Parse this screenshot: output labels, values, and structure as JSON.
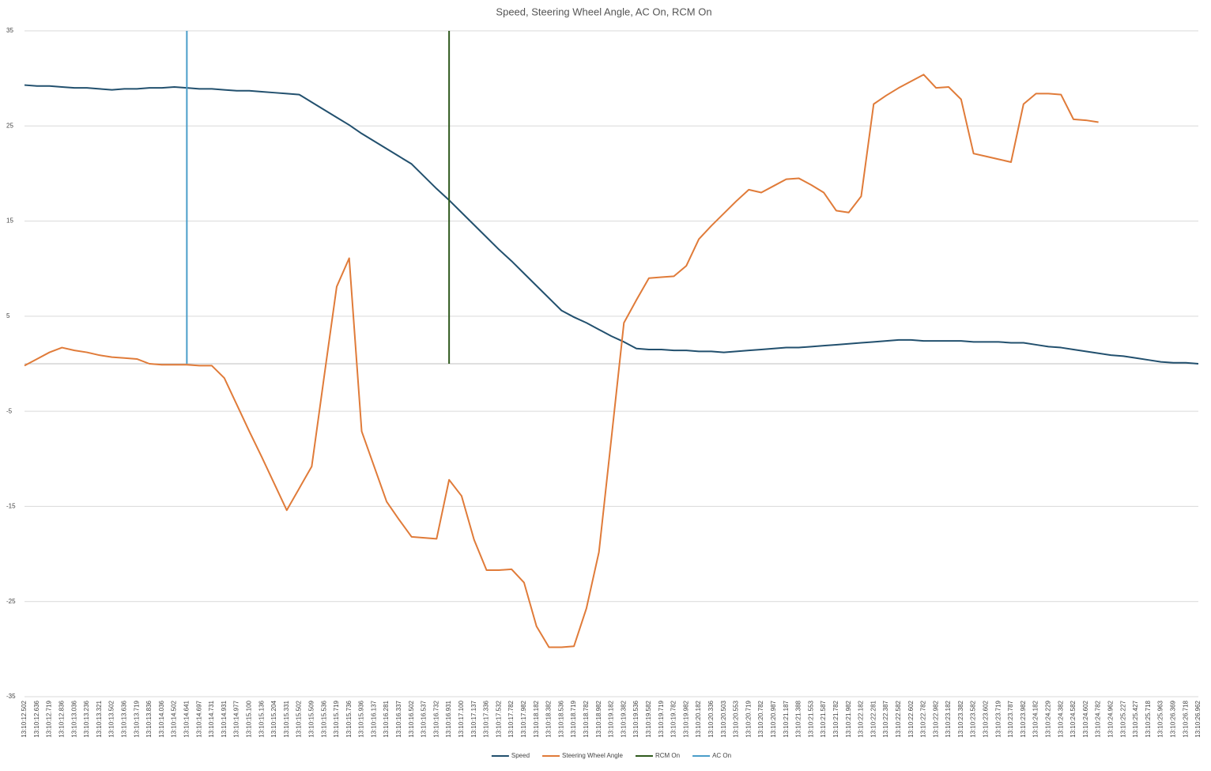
{
  "chart_data": {
    "type": "line",
    "title": "Speed, Steering Wheel Angle, AC On, RCM On",
    "categories": [
      "13:10:12.502",
      "13:10:12.636",
      "13:10:12.719",
      "13:10:12.836",
      "13:10:13.036",
      "13:10:13.236",
      "13:10:13.321",
      "13:10:13.502",
      "13:10:13.636",
      "13:10:13.719",
      "13:10:13.836",
      "13:10:14.036",
      "13:10:14.502",
      "13:10:14.641",
      "13:10:14.697",
      "13:10:14.731",
      "13:10:14.931",
      "13:10:14.977",
      "13:10:15.100",
      "13:10:15.136",
      "13:10:15.204",
      "13:10:15.331",
      "13:10:15.502",
      "13:10:15.509",
      "13:10:15.536",
      "13:10:15.719",
      "13:10:15.736",
      "13:10:15.936",
      "13:10:16.137",
      "13:10:16.281",
      "13:10:16.337",
      "13:10:16.502",
      "13:10:16.537",
      "13:10:16.732",
      "13:10:16.931",
      "13:10:17.100",
      "13:10:17.137",
      "13:10:17.336",
      "13:10:17.532",
      "13:10:17.782",
      "13:10:17.982",
      "13:10:18.182",
      "13:10:18.382",
      "13:10:18.536",
      "13:10:18.719",
      "13:10:18.782",
      "13:10:18.982",
      "13:10:19.182",
      "13:10:19.382",
      "13:10:19.536",
      "13:10:19.582",
      "13:10:19.719",
      "13:10:19.782",
      "13:10:19.982",
      "13:10:20.182",
      "13:10:20.336",
      "13:10:20.503",
      "13:10:20.553",
      "13:10:20.719",
      "13:10:20.782",
      "13:10:20.987",
      "13:10:21.187",
      "13:10:21.388",
      "13:10:21.553",
      "13:10:21.587",
      "13:10:21.782",
      "13:10:21.982",
      "13:10:22.182",
      "13:10:22.281",
      "13:10:22.387",
      "13:10:22.582",
      "13:10:22.602",
      "13:10:22.782",
      "13:10:22.982",
      "13:10:23.182",
      "13:10:23.382",
      "13:10:23.582",
      "13:10:23.602",
      "13:10:23.719",
      "13:10:23.787",
      "13:10:23.982",
      "13:10:24.182",
      "13:10:24.229",
      "13:10:24.382",
      "13:10:24.582",
      "13:10:24.602",
      "13:10:24.782",
      "13:10:24.962",
      "13:10:25.227",
      "13:10:25.427",
      "13:10:25.718",
      "13:10:25.963",
      "13:10:26.369",
      "13:10:26.718",
      "13:10:26.962"
    ],
    "series": [
      {
        "name": "Speed",
        "color": "#22506e",
        "values": [
          29.3,
          29.2,
          29.2,
          29.1,
          29.0,
          29.0,
          28.9,
          28.8,
          28.9,
          28.9,
          29.0,
          29.0,
          29.1,
          29.0,
          28.9,
          28.9,
          28.8,
          28.7,
          28.7,
          28.6,
          28.5,
          28.4,
          28.3,
          27.5,
          26.7,
          25.9,
          25.1,
          24.2,
          23.4,
          22.6,
          21.8,
          21.0,
          19.7,
          18.4,
          17.2,
          15.9,
          14.6,
          13.3,
          12.0,
          10.8,
          9.5,
          8.2,
          6.9,
          5.6,
          4.9,
          4.3,
          3.6,
          2.9,
          2.3,
          1.6,
          1.5,
          1.5,
          1.4,
          1.4,
          1.3,
          1.3,
          1.2,
          1.3,
          1.4,
          1.5,
          1.6,
          1.7,
          1.7,
          1.8,
          1.9,
          2.0,
          2.1,
          2.2,
          2.3,
          2.4,
          2.5,
          2.5,
          2.4,
          2.4,
          2.4,
          2.4,
          2.3,
          2.3,
          2.3,
          2.2,
          2.2,
          2.0,
          1.8,
          1.7,
          1.5,
          1.3,
          1.1,
          0.9,
          0.8,
          0.6,
          0.4,
          0.2,
          0.1,
          0.1,
          0.0
        ]
      },
      {
        "name": "Steering Wheel Angle",
        "color": "#e07b39",
        "values": [
          -0.2,
          0.5,
          1.2,
          1.7,
          1.4,
          1.2,
          0.9,
          0.7,
          0.6,
          0.5,
          0.0,
          -0.1,
          -0.1,
          -0.1,
          -0.2,
          -0.2,
          -1.5,
          -4.3,
          -7.1,
          -9.8,
          -12.6,
          -15.4,
          -13.1,
          -10.8,
          -1.3,
          8.1,
          11.1,
          -7.1,
          -10.8,
          -14.5,
          -16.4,
          -18.2,
          -18.3,
          -18.4,
          -12.2,
          -13.9,
          -18.5,
          -21.7,
          -21.7,
          -21.6,
          -23.0,
          -27.6,
          -29.8,
          -29.8,
          -29.7,
          -25.7,
          -19.8,
          -7.8,
          4.3,
          6.7,
          9.0,
          9.1,
          9.2,
          10.3,
          13.1,
          14.5,
          15.8,
          17.1,
          18.3,
          18.0,
          18.7,
          19.4,
          19.5,
          18.8,
          18.0,
          16.1,
          15.9,
          17.6,
          27.3,
          28.2,
          29.0,
          29.7,
          30.4,
          29.0,
          29.1,
          27.8,
          22.1,
          21.8,
          21.5,
          21.2,
          27.3,
          28.4,
          28.4,
          28.3,
          25.7,
          25.6,
          25.4,
          null,
          null,
          null,
          null,
          null,
          null,
          null,
          null
        ]
      },
      {
        "name": "RCM On",
        "color": "#2f5a1e",
        "x": [
          "13:10:16.931",
          "13:10:16.931"
        ],
        "values": [
          0,
          35
        ]
      },
      {
        "name": "AC On",
        "color": "#4a9dc9",
        "x": [
          "13:10:14.641",
          "13:10:14.641"
        ],
        "values": [
          0,
          35
        ]
      }
    ],
    "ylim": [
      -35,
      35
    ],
    "yticks": [
      -35,
      -25,
      -15,
      -5,
      5,
      15,
      25,
      35
    ],
    "grid": true,
    "legend": "bottom"
  }
}
